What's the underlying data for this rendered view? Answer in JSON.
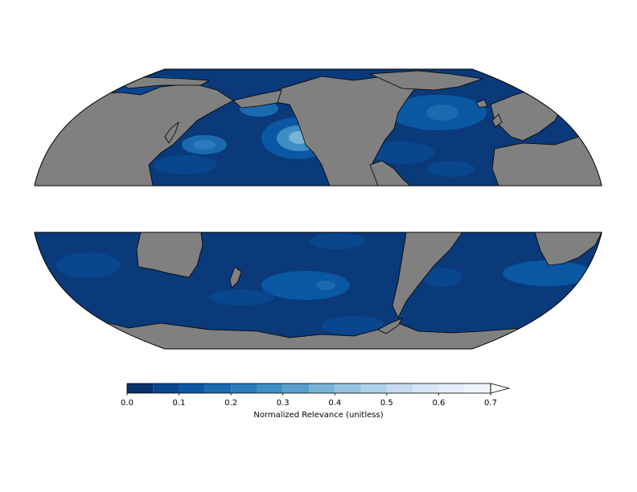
{
  "colorbar": {
    "label": "Normalized Relevance (unitless)",
    "ticks": [
      "0.0",
      "0.1",
      "0.2",
      "0.3",
      "0.4",
      "0.5",
      "0.6",
      "0.7"
    ],
    "levels": [
      0.0,
      0.05,
      0.1,
      0.15,
      0.2,
      0.25,
      0.3,
      0.35,
      0.4,
      0.45,
      0.5,
      0.55,
      0.6,
      0.65,
      0.7
    ],
    "colors": [
      "#08306b",
      "#08468d",
      "#0a58a4",
      "#1b69af",
      "#2b7bba",
      "#3e8ec4",
      "#5a9fcd",
      "#75b4d8",
      "#94c4df",
      "#afd1e7",
      "#c6dbef",
      "#d6e6f4",
      "#e3eef9",
      "#f0f6fd"
    ],
    "extend": "max",
    "extend_color": "#f7fbff"
  },
  "map": {
    "projection": "Eckert-like pseudocylindrical",
    "land_color": "#808080",
    "ocean_base_color": "#0a3a7a",
    "coastline_color": "#000000",
    "panels": [
      "northern-band",
      "southern-band"
    ]
  }
}
